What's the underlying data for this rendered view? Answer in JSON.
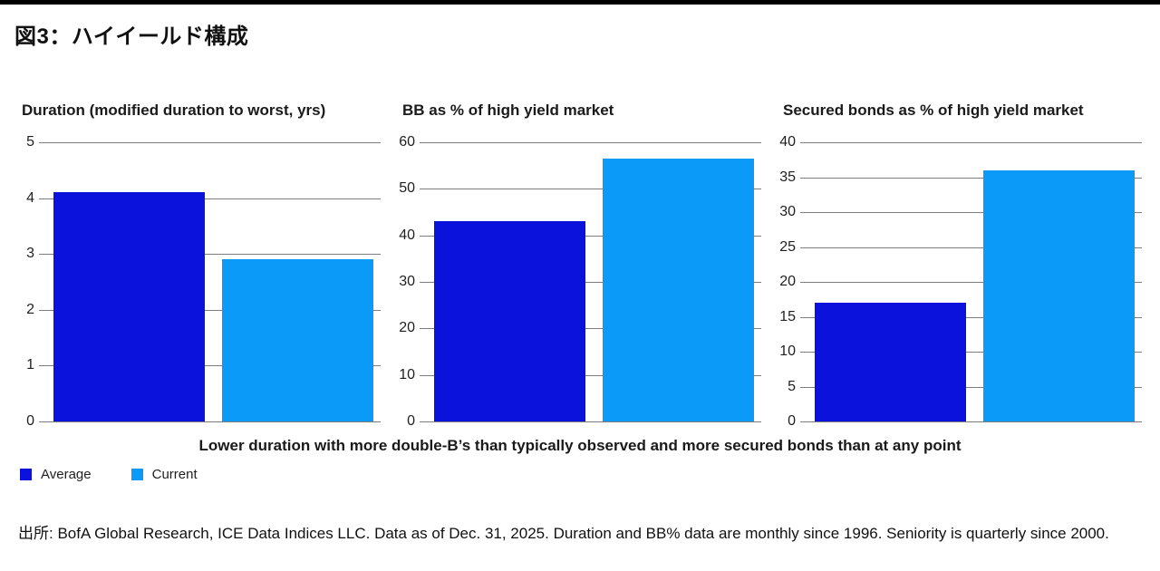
{
  "figure": {
    "title": "図3：ハイイールド構成",
    "caption": "Lower duration with more double-B’s than typically observed and more secured bonds than at any point",
    "source": "出所: BofA Global Research, ICE Data Indices LLC. Data as of Dec. 31, 2025. Duration and BB% data are monthly since 1996. Seniority is quarterly since 2000."
  },
  "colors": {
    "average": "#0b12dc",
    "current": "#0c9af8",
    "gridline": "#7d7d7d",
    "top_rule": "#000000"
  },
  "legend": [
    {
      "label": "Average",
      "color": "#0b12dc"
    },
    {
      "label": "Current",
      "color": "#0c9af8"
    }
  ],
  "chart_data": [
    {
      "type": "bar",
      "title": "Duration (modified duration to worst, yrs)",
      "categories": [
        "Average",
        "Current"
      ],
      "values": [
        4.1,
        2.9
      ],
      "ylim": [
        0,
        5
      ],
      "yticks": [
        0,
        1,
        2,
        3,
        4,
        5
      ],
      "grid": true,
      "legend_position": "bottom-left"
    },
    {
      "type": "bar",
      "title": "BB as % of high yield market",
      "categories": [
        "Average",
        "Current"
      ],
      "values": [
        43,
        56.5
      ],
      "ylim": [
        0,
        60
      ],
      "yticks": [
        0,
        10,
        20,
        30,
        40,
        50,
        60
      ],
      "grid": true,
      "legend_position": "bottom-left"
    },
    {
      "type": "bar",
      "title": "Secured bonds as % of high yield market",
      "categories": [
        "Average",
        "Current"
      ],
      "values": [
        17,
        36
      ],
      "ylim": [
        0,
        40
      ],
      "yticks": [
        0,
        5,
        10,
        15,
        20,
        25,
        30,
        35,
        40
      ],
      "grid": true,
      "legend_position": "bottom-left"
    }
  ]
}
